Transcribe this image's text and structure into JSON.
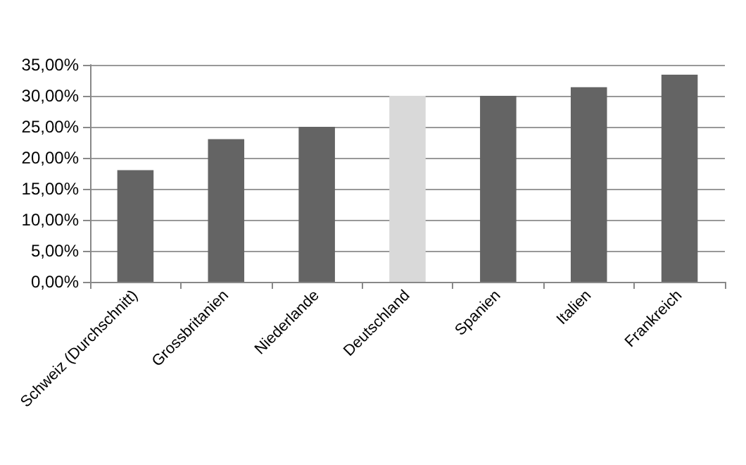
{
  "chart_data": {
    "type": "bar",
    "categories": [
      "Schweiz (Durchschnitt)",
      "Grossbritanien",
      "Niederlande",
      "Deutschland",
      "Spanien",
      "Italien",
      "Frankreich"
    ],
    "values": [
      18,
      23,
      25,
      30,
      30,
      31.4,
      33.4
    ],
    "colors": [
      "#646464",
      "#646464",
      "#646464",
      "#d9d9d9",
      "#646464",
      "#646464",
      "#646464"
    ],
    "ylim": [
      0,
      35
    ],
    "yticks": [
      {
        "value": 0,
        "label": "0,00%"
      },
      {
        "value": 5,
        "label": "5,00%"
      },
      {
        "value": 10,
        "label": "10,00%"
      },
      {
        "value": 15,
        "label": "15,00%"
      },
      {
        "value": 20,
        "label": "20,00%"
      },
      {
        "value": 25,
        "label": "25,00%"
      },
      {
        "value": 30,
        "label": "30,00%"
      },
      {
        "value": 35,
        "label": "35,00%"
      }
    ],
    "grid": "y"
  }
}
